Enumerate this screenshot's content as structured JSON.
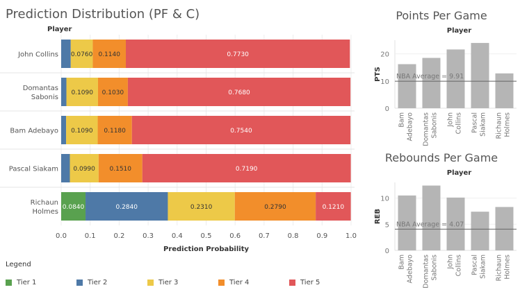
{
  "titles": {
    "main": "Prediction Distribution (PF & C)",
    "points": "Points Per Game",
    "rebounds": "Rebounds Per Game"
  },
  "legend": {
    "title": "Legend",
    "items": [
      {
        "label": "Tier 1",
        "color": "#59a14f"
      },
      {
        "label": "Tier 2",
        "color": "#4e79a7"
      },
      {
        "label": "Tier 3",
        "color": "#edc948"
      },
      {
        "label": "Tier 4",
        "color": "#f28e2b"
      },
      {
        "label": "Tier 5",
        "color": "#e15759"
      }
    ]
  },
  "chart_data": [
    {
      "type": "bar",
      "orientation": "horizontal",
      "stacked": true,
      "title": "Prediction Distribution (PF & C)",
      "ylabel": "Player",
      "xlabel": "Prediction Probability",
      "xlim": [
        0,
        1.0
      ],
      "xticks": [
        "0.0",
        "0.1",
        "0.2",
        "0.3",
        "0.4",
        "0.5",
        "0.6",
        "0.7",
        "0.8",
        "0.9",
        "1.0"
      ],
      "categories": [
        "John Collins",
        "Domantas Sabonis",
        "Bam Adebayo",
        "Pascal Siakam",
        "Richaun Holmes"
      ],
      "series": [
        {
          "name": "Tier 1",
          "color": "#59a14f",
          "values": [
            0,
            0,
            0,
            0,
            0.084
          ],
          "labels": [
            "",
            "",
            "",
            "",
            "0.0840"
          ]
        },
        {
          "name": "Tier 2",
          "color": "#4e79a7",
          "values": [
            0.033,
            0.018,
            0.017,
            0.03,
            0.284
          ],
          "labels": [
            "",
            "",
            "",
            "",
            "0.2840"
          ]
        },
        {
          "name": "Tier 3",
          "color": "#edc948",
          "values": [
            0.076,
            0.109,
            0.109,
            0.099,
            0.231
          ],
          "labels": [
            "0.0760",
            "0.1090",
            "0.1090",
            "0.0990",
            "0.2310"
          ]
        },
        {
          "name": "Tier 4",
          "color": "#f28e2b",
          "values": [
            0.114,
            0.103,
            0.118,
            0.151,
            0.279
          ],
          "labels": [
            "0.1140",
            "0.1030",
            "0.1180",
            "0.1510",
            "0.2790"
          ]
        },
        {
          "name": "Tier 5",
          "color": "#e15759",
          "values": [
            0.773,
            0.768,
            0.754,
            0.719,
            0.121
          ],
          "labels": [
            "0.7730",
            "0.7680",
            "0.7540",
            "0.7190",
            "0.1210"
          ]
        }
      ],
      "legend": "bottom-left"
    },
    {
      "type": "bar",
      "title": "Points Per Game",
      "xlabel": "Player",
      "ylabel": "PTS",
      "categories": [
        "Bam Adebayo",
        "Domantas Sabonis",
        "John Collins",
        "Pascal Siakam",
        "Richaun Holmes"
      ],
      "values": [
        16.2,
        18.5,
        21.6,
        24.0,
        12.8
      ],
      "ylim": [
        0,
        25
      ],
      "yticks": [
        "0",
        "10",
        "20"
      ],
      "reference_line": {
        "value": 9.91,
        "label": "NBA Average = 9.91"
      },
      "color": "#b5b5b5"
    },
    {
      "type": "bar",
      "title": "Rebounds Per Game",
      "xlabel": "Player",
      "ylabel": "REB",
      "categories": [
        "Bam Adebayo",
        "Domantas Sabonis",
        "John Collins",
        "Pascal Siakam",
        "Richaun Holmes"
      ],
      "values": [
        10.5,
        12.4,
        10.1,
        7.4,
        8.3
      ],
      "ylim": [
        0,
        13
      ],
      "yticks": [
        "0",
        "5",
        "10"
      ],
      "reference_line": {
        "value": 4.07,
        "label": "NBA Average = 4.07"
      },
      "color": "#b5b5b5"
    }
  ]
}
